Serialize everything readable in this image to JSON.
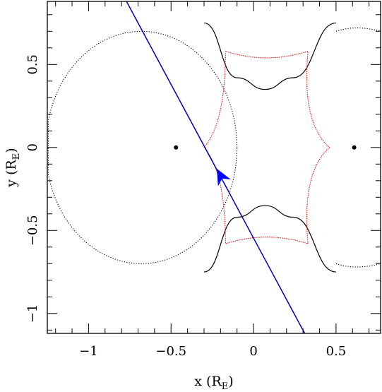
{
  "chart_data": {
    "type": "scatter",
    "title": "",
    "xlabel": "x (R",
    "xlabel_sub": "E",
    "xlabel_close": ")",
    "ylabel": "y (R",
    "ylabel_sub": "E",
    "ylabel_close": ")",
    "xlim": [
      -1.25,
      0.77
    ],
    "ylim": [
      -1.12,
      0.88
    ],
    "xticks": [
      {
        "value": -1,
        "label": "−1"
      },
      {
        "value": -0.5,
        "label": "−0.5"
      },
      {
        "value": 0,
        "label": "0"
      },
      {
        "value": 0.5,
        "label": "0.5"
      }
    ],
    "yticks": [
      {
        "value": -1,
        "label": "−1"
      },
      {
        "value": -0.5,
        "label": "−0.5"
      },
      {
        "value": 0,
        "label": "0"
      },
      {
        "value": 0.5,
        "label": "0.5"
      }
    ],
    "grid": false,
    "lenses": [
      {
        "x": -0.47,
        "y": 0.0
      },
      {
        "x": 0.61,
        "y": 0.0
      }
    ],
    "caustic_cusps": [
      {
        "x": -0.3,
        "y": 0.0
      },
      {
        "x": -0.17,
        "y": 0.58
      },
      {
        "x": 0.33,
        "y": 0.58
      },
      {
        "x": 0.46,
        "y": 0.0
      },
      {
        "x": 0.33,
        "y": -0.58
      },
      {
        "x": -0.17,
        "y": -0.58
      }
    ],
    "caustic_edge_midpoints": {
      "top": 0.5,
      "bottom": -0.5,
      "left_x": -0.13,
      "right_x": 0.3
    },
    "critical_curve_solid": {
      "upper": [
        [
          -0.3,
          0.75
        ],
        [
          -0.1,
          0.42
        ],
        [
          0.07,
          0.35
        ],
        [
          0.24,
          0.42
        ],
        [
          0.5,
          0.75
        ]
      ],
      "lower": [
        [
          -0.3,
          -0.75
        ],
        [
          -0.1,
          -0.42
        ],
        [
          0.07,
          -0.35
        ],
        [
          0.24,
          -0.42
        ],
        [
          0.5,
          -0.75
        ]
      ]
    },
    "critical_curve_dotted": {
      "left_center_x": -0.68,
      "left_rx": 0.58,
      "left_ry": 0.7,
      "right_top": [
        [
          0.5,
          0.7
        ],
        [
          0.77,
          0.7
        ]
      ],
      "right_bottom": [
        [
          0.5,
          -0.7
        ],
        [
          0.77,
          -0.7
        ]
      ]
    },
    "trajectory": {
      "x1": -0.77,
      "y1": 0.88,
      "x2": 0.31,
      "y2": -1.12,
      "color": "#0000b4"
    },
    "direction_arrow": {
      "x": -0.2,
      "y": -0.17,
      "color": "#0000ff"
    },
    "colors": {
      "caustic": "#d42020",
      "critical": "#000000",
      "trajectory": "#0000b4",
      "lens": "#000000"
    }
  }
}
